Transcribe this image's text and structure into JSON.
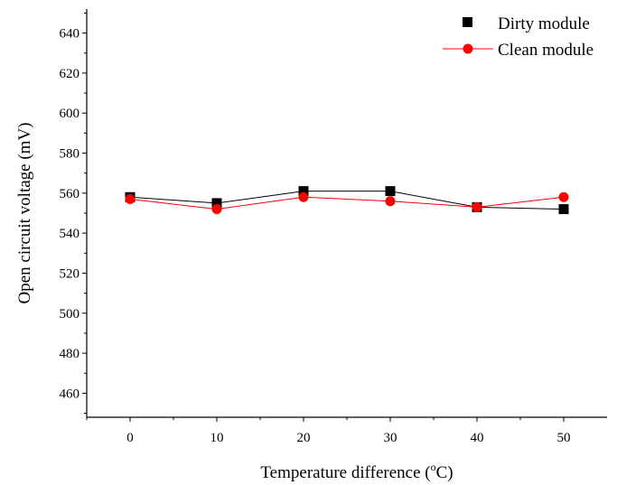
{
  "chart_data": {
    "type": "line",
    "title": "",
    "xlabel": "Temperature difference (",
    "xlabel_sup": "o",
    "xlabel_unit": "C)",
    "ylabel": "Open circuit voltage (mV)",
    "xlim": [
      -5,
      55
    ],
    "ylim": [
      448,
      652
    ],
    "xticks": [
      0,
      10,
      20,
      30,
      40,
      50
    ],
    "yticks": [
      460,
      480,
      500,
      520,
      540,
      560,
      580,
      600,
      620,
      640
    ],
    "x": [
      0,
      10,
      20,
      30,
      40,
      50
    ],
    "series": [
      {
        "name": "Dirty module",
        "marker": "square",
        "color": "#000000",
        "line_color": "#000000",
        "values": [
          558,
          555,
          561,
          561,
          553,
          552
        ]
      },
      {
        "name": "Clean module",
        "marker": "circle",
        "color": "#ff0000",
        "line_color": "#ff0000",
        "values": [
          557,
          552,
          558,
          556,
          553,
          558
        ]
      }
    ],
    "legend_position": "top-right",
    "grid": false
  }
}
